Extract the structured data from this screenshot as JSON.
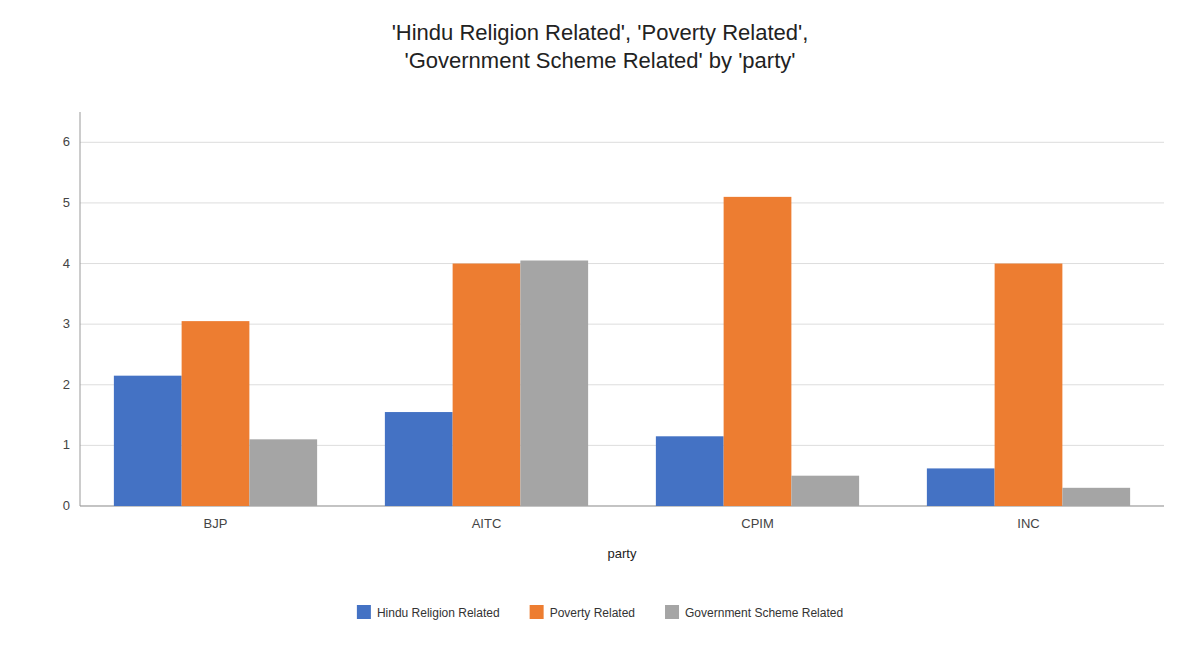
{
  "chart_data": {
    "type": "bar",
    "title": "'Hindu Religion Related', 'Poverty Related',\n'Government Scheme Related' by 'party'",
    "xlabel": "party",
    "categories": [
      "BJP",
      "AITC",
      "CPIM",
      "INC"
    ],
    "series": [
      {
        "name": "Hindu Religion Related",
        "color": "#4472C4",
        "values": [
          2.15,
          1.55,
          1.15,
          0.62
        ]
      },
      {
        "name": "Poverty Related",
        "color": "#ED7D31",
        "values": [
          3.05,
          4.0,
          5.1,
          4.0
        ]
      },
      {
        "name": "Government Scheme Related",
        "color": "#A5A5A5",
        "values": [
          1.1,
          4.05,
          0.5,
          0.3
        ]
      }
    ],
    "ylim": [
      0,
      6.5
    ],
    "yticks": [
      0,
      1,
      2,
      3,
      4,
      5,
      6
    ],
    "grid": true,
    "legend": "bottom"
  }
}
